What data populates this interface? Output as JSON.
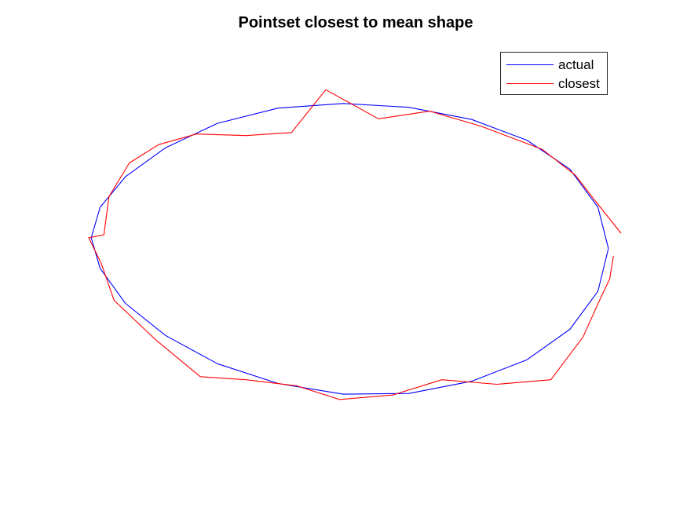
{
  "chart_data": {
    "type": "line",
    "title": "Pointset closest to mean shape",
    "xlabel": "",
    "ylabel": "",
    "axes_visible": false,
    "grid": false,
    "legend_position": "top-right",
    "xlim": [
      -1.05,
      1.05
    ],
    "ylim": [
      -0.98,
      0.98
    ],
    "series": [
      {
        "name": "actual",
        "color": "#0000ff",
        "x": [
          1.0,
          0.959,
          0.848,
          0.678,
          0.461,
          0.213,
          -0.046,
          -0.303,
          -0.542,
          -0.747,
          -0.905,
          -1.005,
          -1.04,
          -1.005,
          -0.905,
          -0.747,
          -0.542,
          -0.303,
          -0.046,
          0.213,
          0.461,
          0.678,
          0.848,
          0.959,
          1.0
        ],
        "y": [
          0.0,
          -0.28,
          -0.53,
          -0.73,
          -0.87,
          -0.95,
          -0.955,
          -0.885,
          -0.755,
          -0.57,
          -0.36,
          -0.13,
          0.07,
          0.27,
          0.47,
          0.66,
          0.82,
          0.92,
          0.95,
          0.925,
          0.845,
          0.71,
          0.52,
          0.27,
          0.0
        ]
      },
      {
        "name": "closest",
        "color": "#ff0000",
        "x": [
          1.02,
          1.005,
          0.965,
          0.9,
          0.773,
          0.56,
          0.343,
          0.15,
          -0.06,
          -0.23,
          -0.43,
          -0.61,
          -0.785,
          -0.95,
          -1.0,
          -1.05,
          -0.99,
          -0.97,
          -0.89,
          -0.775,
          -0.625,
          -0.43,
          -0.25,
          -0.115,
          0.093,
          0.295,
          0.5,
          0.738,
          0.87,
          0.93,
          1.05
        ],
        "y": [
          -0.05,
          -0.2,
          -0.34,
          -0.58,
          -0.86,
          -0.89,
          -0.86,
          -0.96,
          -0.99,
          -0.9,
          -0.86,
          -0.84,
          -0.6,
          -0.34,
          -0.1,
          0.07,
          0.09,
          0.34,
          0.56,
          0.68,
          0.75,
          0.74,
          0.76,
          1.04,
          0.85,
          0.9,
          0.8,
          0.65,
          0.48,
          0.35,
          0.1
        ]
      }
    ]
  }
}
